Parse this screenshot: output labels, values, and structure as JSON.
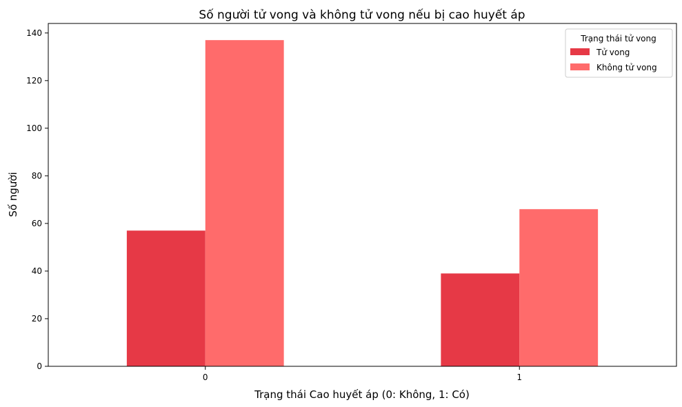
{
  "chart_data": {
    "type": "bar",
    "title": "Số người tử vong và không tử vong nếu bị cao huyết áp",
    "xlabel": "Trạng thái Cao huyết áp (0: Không, 1: Có)",
    "ylabel": "Số người",
    "categories": [
      "0",
      "1"
    ],
    "series": [
      {
        "name": "Tử vong",
        "values": [
          57,
          39
        ],
        "color": "#e63946"
      },
      {
        "name": "Không tử vong",
        "values": [
          137,
          66
        ],
        "color": "#ff6b6b"
      }
    ],
    "ylim": [
      0,
      144
    ],
    "yticks": [
      0,
      20,
      40,
      60,
      80,
      100,
      120,
      140
    ],
    "legend": {
      "title": "Trạng thái tử vong",
      "placement": "top-right"
    },
    "grid": false
  }
}
